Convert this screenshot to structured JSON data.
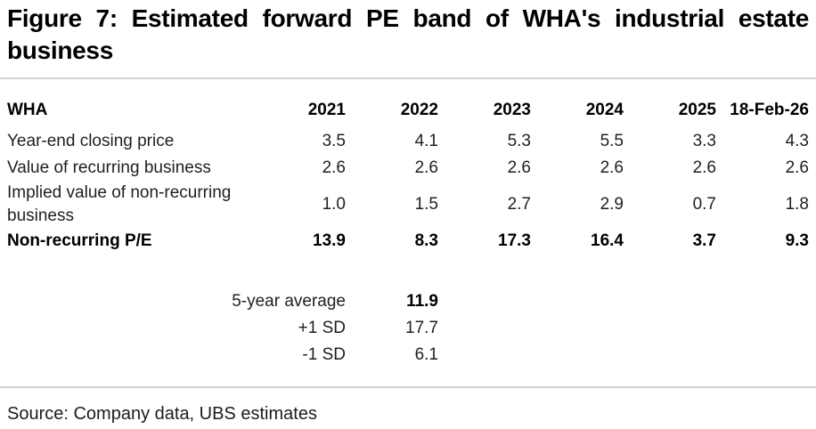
{
  "figure": {
    "title": "Figure 7: Estimated forward PE band of WHA's industrial estate business",
    "source": "Source: Company data, UBS estimates"
  },
  "table": {
    "header": [
      "WHA",
      "2021",
      "2022",
      "2023",
      "2024",
      "2025",
      "18-Feb-26"
    ],
    "rows": [
      {
        "label": "Year-end closing price",
        "values": [
          "3.5",
          "4.1",
          "5.3",
          "5.5",
          "3.3",
          "4.3"
        ]
      },
      {
        "label": "Value of recurring business",
        "values": [
          "2.6",
          "2.6",
          "2.6",
          "2.6",
          "2.6",
          "2.6"
        ]
      },
      {
        "label": "Implied value of non-recurring business",
        "values": [
          "1.0",
          "1.5",
          "2.7",
          "2.9",
          "0.7",
          "1.8"
        ]
      },
      {
        "label": "Non-recurring P/E",
        "values": [
          "13.9",
          "8.3",
          "17.3",
          "16.4",
          "3.7",
          "9.3"
        ]
      }
    ],
    "summary": [
      {
        "label": "5-year average",
        "value": "11.9"
      },
      {
        "label": "+1 SD",
        "value": "17.7"
      },
      {
        "label": "-1 SD",
        "value": "6.1"
      }
    ]
  },
  "colors": {
    "rule": "#d1d1d1",
    "title_text": "#000000",
    "body_text": "#1f1f1f"
  }
}
